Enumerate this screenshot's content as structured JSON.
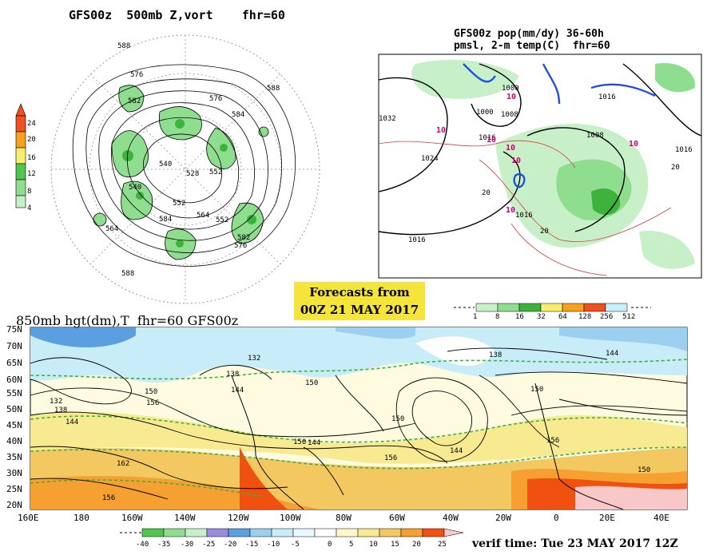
{
  "panels": {
    "vort": {
      "title": "GFS00z  500mb Z,vort    fhr=60",
      "legend": [
        "24",
        "20",
        "16",
        "12",
        "8",
        "4"
      ],
      "legend_colors": [
        "#f0501e",
        "#f6a21e",
        "#f7ee6e",
        "#4fc64f",
        "#8fde8f",
        "#c8f0c8"
      ],
      "contour_labels": [
        "588",
        "576",
        "588",
        "576",
        "582",
        "584",
        "540",
        "528",
        "552",
        "540",
        "584",
        "552",
        "552",
        "564",
        "576",
        "588",
        "582",
        "564"
      ]
    },
    "precip": {
      "title_line1": "GFS00z pop(mm/dy) 36-60h",
      "title_line2": "pmsl, 2-m temp(C)  fhr=60",
      "isobar_labels": [
        "1000",
        "1008",
        "1016",
        "1024",
        "1016",
        "1016",
        "1008",
        "1016",
        "1000",
        "1016",
        "1032"
      ],
      "temp_labels": [
        "10",
        "10",
        "10",
        "10",
        "10",
        "10",
        "10",
        "20",
        "20",
        "20"
      ],
      "legend_ticks": [
        "1",
        "8",
        "16",
        "32",
        "64",
        "128",
        "256",
        "512"
      ],
      "legend_colors": [
        "#c8f0c8",
        "#8fde8f",
        "#3cb43c",
        "#f7ee6e",
        "#f6a21e",
        "#f0501e",
        "#c8f0f8"
      ]
    },
    "forecast_box": {
      "line1": "Forecasts from",
      "line2": "00Z 21 MAY 2017"
    },
    "h850": {
      "title": "850mb hgt(dm),T  fhr=60 GFS00z",
      "lat_labels": [
        "75N",
        "70N",
        "65N",
        "60N",
        "55N",
        "50N",
        "45N",
        "40N",
        "35N",
        "30N",
        "25N",
        "20N"
      ],
      "lon_labels": [
        "160E",
        "180",
        "160W",
        "140W",
        "120W",
        "100W",
        "80W",
        "60W",
        "40W",
        "20W",
        "0",
        "20E",
        "40E"
      ],
      "height_labels": [
        "132",
        "138",
        "144",
        "150",
        "156",
        "162",
        "156",
        "138",
        "132",
        "144",
        "150",
        "150",
        "144",
        "150",
        "156",
        "144",
        "138",
        "144",
        "150",
        "156",
        "150"
      ],
      "legend_ticks": [
        "-40",
        "-35",
        "-30",
        "-25",
        "-20",
        "-15",
        "-10",
        "-5",
        "0",
        "5",
        "10",
        "15",
        "20",
        "25"
      ],
      "legend_colors": [
        "#4fc64f",
        "#8fde8f",
        "#c8f0c8",
        "#9a8ae0",
        "#5aa0e0",
        "#9cd0f0",
        "#c8ecf8",
        "#e8f8ff",
        "#fff8c8",
        "#f7ea90",
        "#f3c860",
        "#f5a030",
        "#f05010",
        "#f8c8c8"
      ]
    }
  },
  "verif": "verif time: Tue 23 MAY 2017 12Z"
}
